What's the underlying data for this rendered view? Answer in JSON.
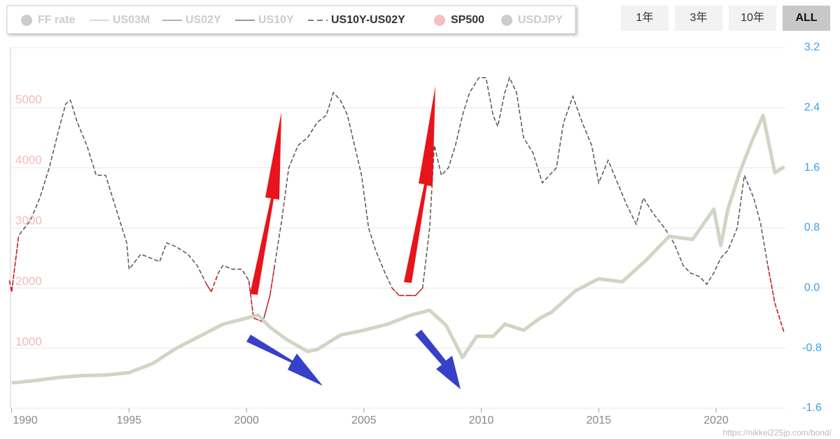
{
  "chart_data": {
    "type": "line",
    "xlim": [
      1989.95,
      2022.95
    ],
    "xticks": [
      1990,
      1995,
      2000,
      2005,
      2010,
      2015,
      2020
    ],
    "ylim": [
      -87,
      5867
    ],
    "yticks": [
      1000,
      2000,
      3000,
      4000,
      5000
    ],
    "y2lim": [
      -1.6,
      3.2
    ],
    "y2ticks": [
      -1.6,
      -0.8,
      0.0,
      0.8,
      1.6,
      2.4,
      3.2
    ],
    "grid": true,
    "negative_color": "#e8141b",
    "buttons": [
      "1年",
      "3年",
      "10年",
      "ALL"
    ],
    "active_button": "ALL",
    "watermark": "https://nikkei225jp.com/bond/",
    "series": [
      {
        "name": "FF rate",
        "marker": "dot",
        "visible": false,
        "color": "#cccccc"
      },
      {
        "name": "US03M",
        "marker": "line",
        "visible": false,
        "color": "#cccccc"
      },
      {
        "name": "US02Y",
        "marker": "line",
        "visible": false,
        "color": "#999999"
      },
      {
        "name": "US10Y",
        "marker": "line",
        "visible": false,
        "color": "#777777"
      },
      {
        "name": "US10Y-US02Y",
        "marker": "dash",
        "visible": true,
        "color": "#555555",
        "axis": "y2",
        "x": [
          1989.9,
          1990.0,
          1990.3,
          1990.8,
          1991.2,
          1991.6,
          1992.0,
          1992.3,
          1992.5,
          1992.8,
          1993.2,
          1993.6,
          1994.0,
          1994.4,
          1994.9,
          1995.0,
          1995.5,
          1995.9,
          1996.3,
          1996.6,
          1997.0,
          1997.5,
          1997.9,
          1998.3,
          1998.5,
          1998.8,
          1999.0,
          1999.4,
          1999.8,
          2000.1,
          2000.3,
          2000.7,
          2001.0,
          2001.2,
          2001.5,
          2001.8,
          2002.2,
          2002.6,
          2003.0,
          2003.4,
          2003.7,
          2004.0,
          2004.3,
          2004.6,
          2004.9,
          2005.2,
          2005.5,
          2005.9,
          2006.2,
          2006.5,
          2006.9,
          2007.2,
          2007.5,
          2007.8,
          2008.0,
          2008.3,
          2008.6,
          2008.9,
          2009.2,
          2009.5,
          2009.9,
          2010.2,
          2010.5,
          2010.7,
          2011.0,
          2011.2,
          2011.5,
          2011.8,
          2012.2,
          2012.6,
          2012.9,
          2013.2,
          2013.5,
          2013.9,
          2014.3,
          2014.7,
          2015.0,
          2015.4,
          2015.8,
          2016.2,
          2016.6,
          2016.9,
          2017.3,
          2017.8,
          2018.2,
          2018.6,
          2018.9,
          2019.3,
          2019.6,
          2019.9,
          2020.2,
          2020.5,
          2020.9,
          2021.2,
          2021.6,
          2021.9,
          2022.2,
          2022.5,
          2022.9
        ],
        "values": [
          0.1,
          -0.05,
          0.7,
          0.9,
          1.2,
          1.6,
          2.1,
          2.45,
          2.5,
          2.2,
          1.9,
          1.5,
          1.5,
          1.1,
          0.6,
          0.25,
          0.45,
          0.4,
          0.35,
          0.6,
          0.55,
          0.45,
          0.3,
          0.05,
          -0.05,
          0.2,
          0.3,
          0.25,
          0.25,
          0.1,
          -0.4,
          -0.45,
          -0.1,
          0.3,
          0.9,
          1.6,
          1.9,
          2.0,
          2.2,
          2.3,
          2.6,
          2.5,
          2.3,
          1.9,
          1.5,
          0.8,
          0.5,
          0.2,
          0.0,
          -0.1,
          -0.1,
          -0.1,
          0.0,
          0.8,
          1.9,
          1.5,
          1.6,
          1.9,
          2.3,
          2.6,
          2.8,
          2.8,
          2.3,
          2.15,
          2.6,
          2.8,
          2.6,
          2.0,
          1.8,
          1.4,
          1.5,
          1.6,
          2.2,
          2.55,
          2.2,
          1.9,
          1.4,
          1.7,
          1.4,
          1.1,
          0.85,
          1.2,
          1.0,
          0.8,
          0.6,
          0.3,
          0.2,
          0.15,
          0.05,
          0.2,
          0.4,
          0.5,
          0.8,
          1.5,
          1.2,
          0.85,
          0.3,
          -0.2,
          -0.6
        ]
      },
      {
        "name": "SP500",
        "marker": "dot",
        "visible": true,
        "color": "#f5c0c0",
        "line_color": "#cfd6c4",
        "x": [
          1990.0,
          1991.0,
          1992.0,
          1993.0,
          1994.0,
          1995.0,
          1996.0,
          1997.0,
          1998.0,
          1999.0,
          2000.5,
          2001.0,
          2001.7,
          2002.6,
          2003.0,
          2004.0,
          2005.0,
          2006.0,
          2007.0,
          2007.8,
          2008.5,
          2009.2,
          2009.8,
          2010.5,
          2011.0,
          2011.8,
          2012.5,
          2013.0,
          2014.0,
          2015.0,
          2016.0,
          2017.0,
          2018.0,
          2019.0,
          2019.9,
          2020.2,
          2020.5,
          2021.0,
          2021.5,
          2022.0,
          2022.5,
          2022.9
        ],
        "values": [
          330,
          370,
          420,
          450,
          460,
          500,
          650,
          900,
          1100,
          1300,
          1450,
          1250,
          1050,
          850,
          880,
          1120,
          1200,
          1300,
          1450,
          1530,
          1280,
          750,
          1100,
          1100,
          1300,
          1200,
          1400,
          1500,
          1850,
          2050,
          2000,
          2350,
          2750,
          2700,
          3200,
          2600,
          3200,
          3800,
          4300,
          4750,
          3800,
          3900
        ]
      },
      {
        "name": "USDJPY",
        "marker": "dot",
        "visible": false,
        "color": "#cccccc"
      }
    ]
  }
}
